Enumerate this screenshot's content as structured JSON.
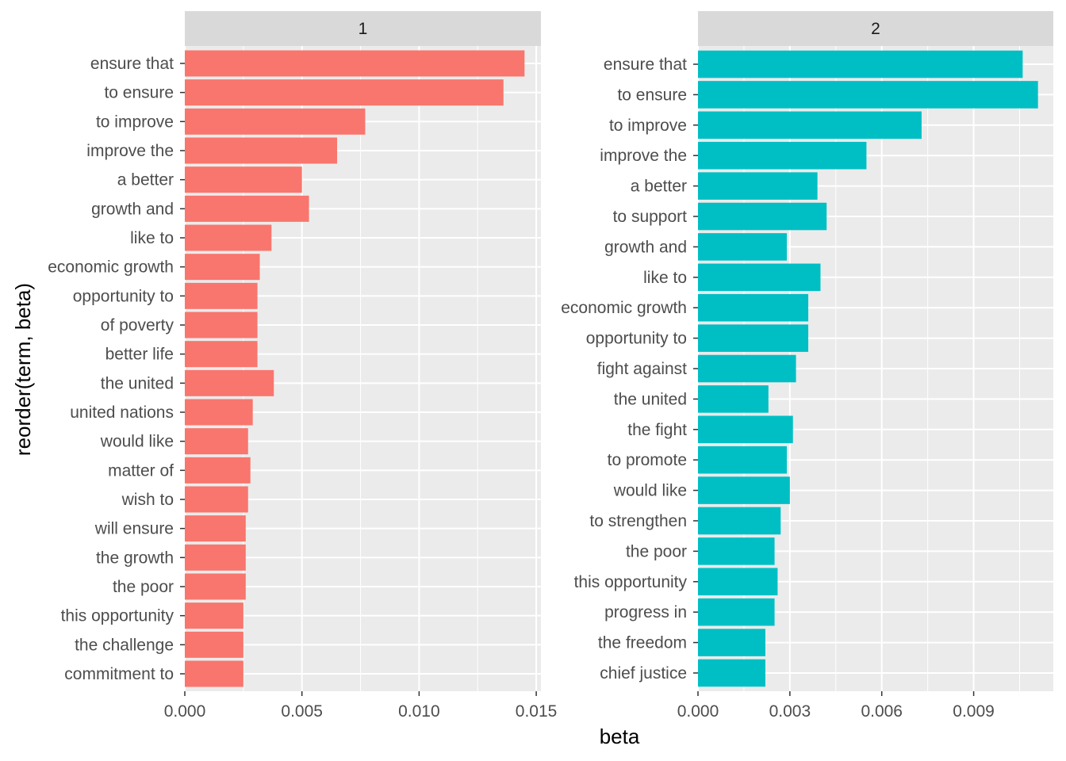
{
  "chart_data": {
    "type": "bar",
    "orientation": "horizontal",
    "xlabel": "beta",
    "ylabel": "reorder(term, beta)",
    "grid": true,
    "legend": "none",
    "panels": [
      {
        "strip_label": "1",
        "color": "#F8766D",
        "xlim": [
          0,
          0.0152
        ],
        "x_ticks": [
          0,
          0.005,
          0.01,
          0.015
        ],
        "x_tick_labels": [
          "0.000",
          "0.005",
          "0.010",
          "0.015"
        ],
        "categories": [
          "ensure that",
          "to ensure",
          "to improve",
          "improve the",
          "a better",
          "growth and",
          "like to",
          "economic growth",
          "opportunity to",
          "of poverty",
          "better life",
          "the united",
          "united nations",
          "would like",
          "matter of",
          "wish to",
          "will ensure",
          "the growth",
          "the poor",
          "this opportunity",
          "the challenge",
          "commitment to"
        ],
        "values": [
          0.0145,
          0.0136,
          0.0077,
          0.0065,
          0.005,
          0.0053,
          0.0037,
          0.0032,
          0.0031,
          0.0031,
          0.0031,
          0.0038,
          0.0029,
          0.0027,
          0.0028,
          0.0027,
          0.0026,
          0.0026,
          0.0026,
          0.0025,
          0.0025,
          0.0025
        ]
      },
      {
        "strip_label": "2",
        "color": "#00BFC4",
        "xlim": [
          0,
          0.0116
        ],
        "x_ticks": [
          0,
          0.003,
          0.006,
          0.009
        ],
        "x_tick_labels": [
          "0.000",
          "0.003",
          "0.006",
          "0.009"
        ],
        "categories": [
          "ensure that",
          "to ensure",
          "to improve",
          "improve the",
          "a better",
          "to support",
          "growth and",
          "like to",
          "economic growth",
          "opportunity to",
          "fight against",
          "the united",
          "the fight",
          "to promote",
          "would like",
          "to strengthen",
          "the poor",
          "this opportunity",
          "progress in",
          "the freedom",
          "chief justice"
        ],
        "values": [
          0.0106,
          0.0111,
          0.0073,
          0.0055,
          0.0039,
          0.0042,
          0.0029,
          0.004,
          0.0036,
          0.0036,
          0.0032,
          0.0023,
          0.0031,
          0.0029,
          0.003,
          0.0027,
          0.0025,
          0.0026,
          0.0025,
          0.0022,
          0.0022
        ]
      }
    ]
  }
}
